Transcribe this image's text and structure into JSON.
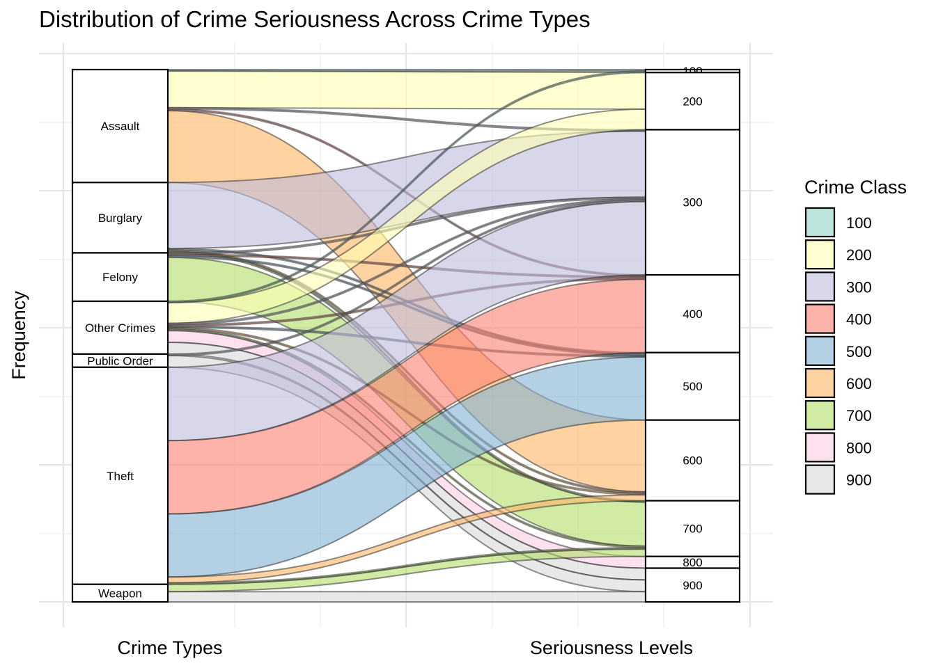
{
  "chart_data": {
    "type": "alluvial",
    "title": "Distribution of Crime Seriousness Across Crime Types",
    "xlabel_left": "Crime Types",
    "xlabel_right": "Seriousness Levels",
    "ylabel": "Frequency",
    "legend": {
      "title": "Crime Class",
      "position": "right",
      "entries": [
        {
          "label": "100",
          "color": "#8dd3c7"
        },
        {
          "label": "200",
          "color": "#ffffb3"
        },
        {
          "label": "300",
          "color": "#bebada"
        },
        {
          "label": "400",
          "color": "#fb8072"
        },
        {
          "label": "500",
          "color": "#80b1d3"
        },
        {
          "label": "600",
          "color": "#fdb462"
        },
        {
          "label": "700",
          "color": "#b3de69"
        },
        {
          "label": "800",
          "color": "#fccde5"
        },
        {
          "label": "900",
          "color": "#d9d9d9"
        }
      ]
    },
    "crime_types": [
      "Assault",
      "Burglary",
      "Felony",
      "Other Crimes",
      "Public Order",
      "Theft",
      "Weapon"
    ],
    "seriousness_levels": [
      "100",
      "200",
      "300",
      "400",
      "500",
      "600",
      "700",
      "800",
      "900"
    ],
    "flows": [
      {
        "type": "Assault",
        "level": "100",
        "value": 1
      },
      {
        "type": "Assault",
        "level": "200",
        "value": 25
      },
      {
        "type": "Assault",
        "level": "300",
        "value": 1
      },
      {
        "type": "Assault",
        "level": "400",
        "value": 1
      },
      {
        "type": "Assault",
        "level": "600",
        "value": 49
      },
      {
        "type": "Burglary",
        "level": "300",
        "value": 45
      },
      {
        "type": "Burglary",
        "level": "500",
        "value": 1
      },
      {
        "type": "Burglary",
        "level": "600",
        "value": 1
      },
      {
        "type": "Burglary",
        "level": "700",
        "value": 1
      },
      {
        "type": "Felony",
        "level": "300",
        "value": 1
      },
      {
        "type": "Felony",
        "level": "400",
        "value": 1
      },
      {
        "type": "Felony",
        "level": "500",
        "value": 1
      },
      {
        "type": "Felony",
        "level": "700",
        "value": 30
      },
      {
        "type": "Other Crimes",
        "level": "100",
        "value": 1
      },
      {
        "type": "Other Crimes",
        "level": "200",
        "value": 14
      },
      {
        "type": "Other Crimes",
        "level": "300",
        "value": 1
      },
      {
        "type": "Other Crimes",
        "level": "400",
        "value": 1
      },
      {
        "type": "Other Crimes",
        "level": "500",
        "value": 1
      },
      {
        "type": "Other Crimes",
        "level": "600",
        "value": 1
      },
      {
        "type": "Other Crimes",
        "level": "700",
        "value": 1
      },
      {
        "type": "Other Crimes",
        "level": "800",
        "value": 8
      },
      {
        "type": "Other Crimes",
        "level": "900",
        "value": 8
      },
      {
        "type": "Public Order",
        "level": "300",
        "value": 1
      },
      {
        "type": "Public Order",
        "level": "900",
        "value": 8
      },
      {
        "type": "Theft",
        "level": "300",
        "value": 50
      },
      {
        "type": "Theft",
        "level": "400",
        "value": 50
      },
      {
        "type": "Theft",
        "level": "500",
        "value": 43
      },
      {
        "type": "Theft",
        "level": "600",
        "value": 4
      },
      {
        "type": "Theft",
        "level": "700",
        "value": 1
      },
      {
        "type": "Weapon",
        "level": "700",
        "value": 5
      },
      {
        "type": "Weapon",
        "level": "900",
        "value": 7
      }
    ],
    "grid": true
  }
}
